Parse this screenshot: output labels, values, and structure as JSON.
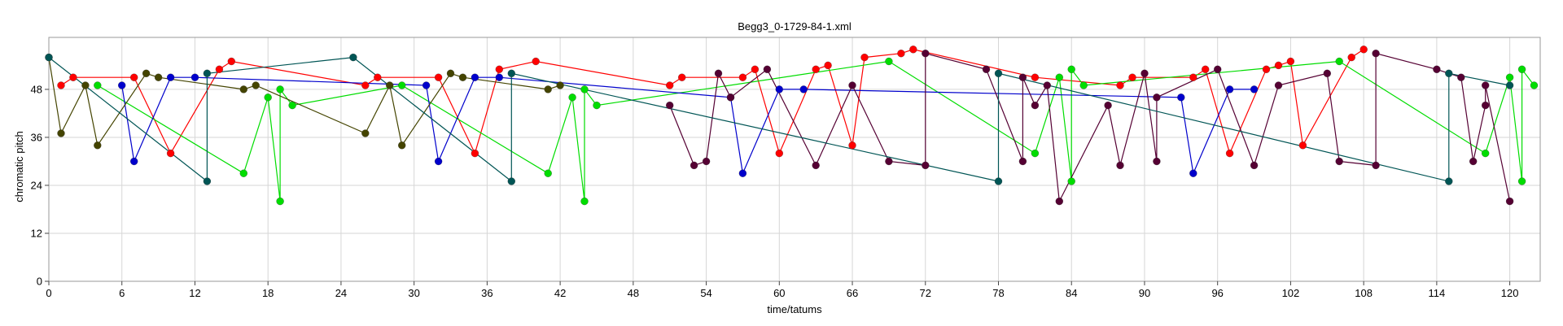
{
  "chart_data": {
    "type": "scatter",
    "title": "Begg3_0-1729-84-1.xml",
    "xlabel": "time/tatums",
    "ylabel": "chromatic pitch",
    "xlim": [
      0,
      122.5
    ],
    "ylim": [
      0,
      61
    ],
    "x_ticks": [
      0,
      6,
      12,
      18,
      24,
      30,
      36,
      42,
      48,
      54,
      60,
      66,
      72,
      78,
      84,
      90,
      96,
      102,
      108,
      114,
      120
    ],
    "y_ticks": [
      0,
      12,
      24,
      36,
      48
    ],
    "grid": true,
    "series": [
      {
        "color": "#ff0000",
        "points": [
          [
            1,
            49
          ],
          [
            2,
            51
          ],
          [
            7,
            51
          ],
          [
            10,
            32
          ],
          [
            14,
            53
          ],
          [
            15,
            55
          ],
          [
            26,
            49
          ],
          [
            27,
            51
          ],
          [
            32,
            51
          ],
          [
            35,
            32
          ],
          [
            37,
            53
          ],
          [
            40,
            55
          ],
          [
            51,
            49
          ],
          [
            52,
            51
          ],
          [
            57,
            51
          ],
          [
            58,
            53
          ],
          [
            60,
            32
          ],
          [
            63,
            53
          ],
          [
            64,
            54
          ],
          [
            66,
            34
          ],
          [
            67,
            56
          ],
          [
            70,
            57
          ],
          [
            71,
            58
          ],
          [
            81,
            51
          ],
          [
            88,
            49
          ],
          [
            89,
            51
          ],
          [
            94,
            51
          ],
          [
            95,
            53
          ],
          [
            97,
            32
          ],
          [
            100,
            53
          ],
          [
            101,
            54
          ],
          [
            102,
            55
          ],
          [
            103,
            34
          ],
          [
            107,
            56
          ],
          [
            108,
            58
          ]
        ]
      },
      {
        "color": "#00dd00",
        "points": [
          [
            4,
            49
          ],
          [
            16,
            27
          ],
          [
            18,
            46
          ],
          [
            19,
            48
          ],
          [
            19,
            20
          ],
          [
            20,
            44
          ],
          [
            29,
            49
          ],
          [
            41,
            27
          ],
          [
            43,
            46
          ],
          [
            44,
            48
          ],
          [
            44,
            20
          ],
          [
            45,
            44
          ],
          [
            69,
            55
          ],
          [
            81,
            32
          ],
          [
            83,
            51
          ],
          [
            84,
            25
          ],
          [
            84,
            53
          ],
          [
            85,
            49
          ],
          [
            106,
            55
          ],
          [
            118,
            32
          ],
          [
            120,
            51
          ],
          [
            121,
            25
          ],
          [
            121,
            53
          ],
          [
            122,
            49
          ]
        ]
      },
      {
        "color": "#0000cc",
        "points": [
          [
            6,
            49
          ],
          [
            7,
            30
          ],
          [
            10,
            51
          ],
          [
            12,
            51
          ],
          [
            31,
            49
          ],
          [
            32,
            30
          ],
          [
            35,
            51
          ],
          [
            37,
            51
          ],
          [
            56,
            46
          ],
          [
            57,
            27
          ],
          [
            60,
            48
          ],
          [
            62,
            48
          ],
          [
            93,
            46
          ],
          [
            94,
            27
          ],
          [
            97,
            48
          ],
          [
            99,
            48
          ]
        ]
      },
      {
        "color": "#550033",
        "points": [
          [
            51,
            44
          ],
          [
            53,
            29
          ],
          [
            54,
            30
          ],
          [
            56,
            46
          ],
          [
            55,
            52
          ],
          [
            59,
            53
          ],
          [
            63,
            29
          ],
          [
            66,
            49
          ],
          [
            69,
            30
          ],
          [
            72,
            57
          ],
          [
            72,
            29
          ],
          [
            77,
            53
          ],
          [
            80,
            30
          ],
          [
            80,
            51
          ],
          [
            81,
            44
          ],
          [
            82,
            49
          ],
          [
            83,
            20
          ],
          [
            88,
            29
          ],
          [
            87,
            44
          ],
          [
            91,
            46
          ],
          [
            90,
            52
          ],
          [
            91,
            30
          ],
          [
            96,
            53
          ],
          [
            99,
            29
          ],
          [
            101,
            49
          ],
          [
            105,
            52
          ],
          [
            106,
            30
          ],
          [
            109,
            29
          ],
          [
            109,
            57
          ],
          [
            114,
            53
          ],
          [
            116,
            51
          ],
          [
            117,
            30
          ],
          [
            118,
            49
          ],
          [
            118,
            44
          ],
          [
            120,
            20
          ]
        ]
      },
      {
        "color": "#444400",
        "points": [
          [
            0,
            56
          ],
          [
            1,
            37
          ],
          [
            3,
            49
          ],
          [
            4,
            34
          ],
          [
            8,
            52
          ],
          [
            9,
            51
          ],
          [
            16,
            48
          ],
          [
            17,
            49
          ],
          [
            26,
            37
          ],
          [
            28,
            49
          ],
          [
            29,
            34
          ],
          [
            33,
            52
          ],
          [
            34,
            51
          ],
          [
            41,
            48
          ],
          [
            42,
            49
          ]
        ]
      },
      {
        "color": "#005555",
        "points": [
          [
            0,
            56
          ],
          [
            13,
            25
          ],
          [
            13,
            52
          ],
          [
            25,
            56
          ],
          [
            38,
            25
          ],
          [
            38,
            52
          ],
          [
            78,
            25
          ],
          [
            78,
            52
          ],
          [
            115,
            25
          ],
          [
            115,
            52
          ],
          [
            120,
            49
          ]
        ]
      }
    ]
  }
}
